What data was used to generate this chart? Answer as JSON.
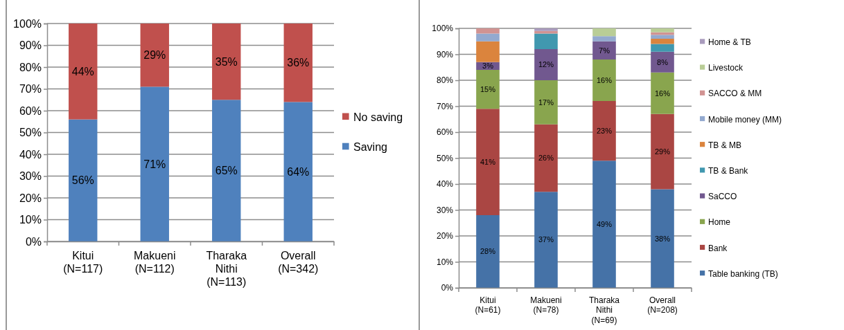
{
  "chart_data": [
    {
      "type": "bar",
      "stacked": true,
      "categories": [
        "Kitui (N=117)",
        "Makueni (N=112)",
        "Tharaka Nithi (N=113)",
        "Overall (N=342)"
      ],
      "ylim": [
        0,
        100
      ],
      "yticks": [
        {
          "value": 0,
          "label": "0%"
        },
        {
          "value": 10,
          "label": "10%"
        },
        {
          "value": 20,
          "label": "20%"
        },
        {
          "value": 30,
          "label": "30%"
        },
        {
          "value": 40,
          "label": "40%"
        },
        {
          "value": 50,
          "label": "50%"
        },
        {
          "value": 60,
          "label": "60%"
        },
        {
          "value": 70,
          "label": "70%"
        },
        {
          "value": 80,
          "label": "80%"
        },
        {
          "value": 90,
          "label": "90%"
        },
        {
          "value": 100,
          "label": "100%"
        }
      ],
      "grid": "y",
      "legend": "right",
      "series": [
        {
          "name": "Saving",
          "color": "#4f81bd",
          "values": [
            56,
            71,
            65,
            64
          ],
          "value_labels": [
            "56%",
            "71%",
            "65%",
            "64%"
          ]
        },
        {
          "name": "No saving",
          "color": "#c0504d",
          "values": [
            44,
            29,
            35,
            36
          ],
          "value_labels": [
            "44%",
            "29%",
            "35%",
            "36%"
          ]
        }
      ]
    },
    {
      "type": "bar",
      "stacked": true,
      "categories": [
        "Kitui (N=61)",
        "Makueni (N=78)",
        "Tharaka Nithi (N=69)",
        "Overall (N=208)"
      ],
      "ylim": [
        0,
        100
      ],
      "yticks": [
        {
          "value": 0,
          "label": "0%"
        },
        {
          "value": 10,
          "label": "10%"
        },
        {
          "value": 20,
          "label": "20%"
        },
        {
          "value": 30,
          "label": "30%"
        },
        {
          "value": 40,
          "label": "40%"
        },
        {
          "value": 50,
          "label": "50%"
        },
        {
          "value": 60,
          "label": "60%"
        },
        {
          "value": 70,
          "label": "70%"
        },
        {
          "value": 80,
          "label": "80%"
        },
        {
          "value": 90,
          "label": "90%"
        },
        {
          "value": 100,
          "label": "100%"
        }
      ],
      "grid": "y",
      "legend": "right",
      "series": [
        {
          "name": "Table banking (TB)",
          "color": "#4572a7",
          "values": [
            28,
            37,
            49,
            38
          ],
          "value_labels": [
            "28%",
            "37%",
            "49%",
            "38%"
          ]
        },
        {
          "name": "Bank",
          "color": "#aa4643",
          "values": [
            41,
            26,
            23,
            29
          ],
          "value_labels": [
            "41%",
            "26%",
            "23%",
            "29%"
          ]
        },
        {
          "name": "Home",
          "color": "#89a54e",
          "values": [
            15,
            17,
            16,
            16
          ],
          "value_labels": [
            "15%",
            "17%",
            "16%",
            "16%"
          ]
        },
        {
          "name": "SaCCO",
          "color": "#71588f",
          "values": [
            3,
            12,
            7,
            8
          ],
          "value_labels": [
            "3%",
            "12%",
            "7%",
            "8%"
          ]
        },
        {
          "name": "TB & Bank",
          "color": "#4198af",
          "values": [
            0,
            6,
            0,
            3
          ]
        },
        {
          "name": "TB & MB",
          "color": "#db843d",
          "values": [
            8,
            0,
            0,
            2
          ]
        },
        {
          "name": "Mobile money (MM)",
          "color": "#93a9cf",
          "values": [
            3,
            0,
            2,
            1.5
          ]
        },
        {
          "name": "SACCO & MM",
          "color": "#d19392",
          "values": [
            2,
            1,
            0,
            1
          ]
        },
        {
          "name": "Livestock",
          "color": "#b9cd96",
          "values": [
            0,
            0,
            3,
            1.5
          ]
        },
        {
          "name": "Home & TB",
          "color": "#a99bbd",
          "values": [
            0,
            1,
            0,
            0
          ]
        }
      ]
    }
  ]
}
